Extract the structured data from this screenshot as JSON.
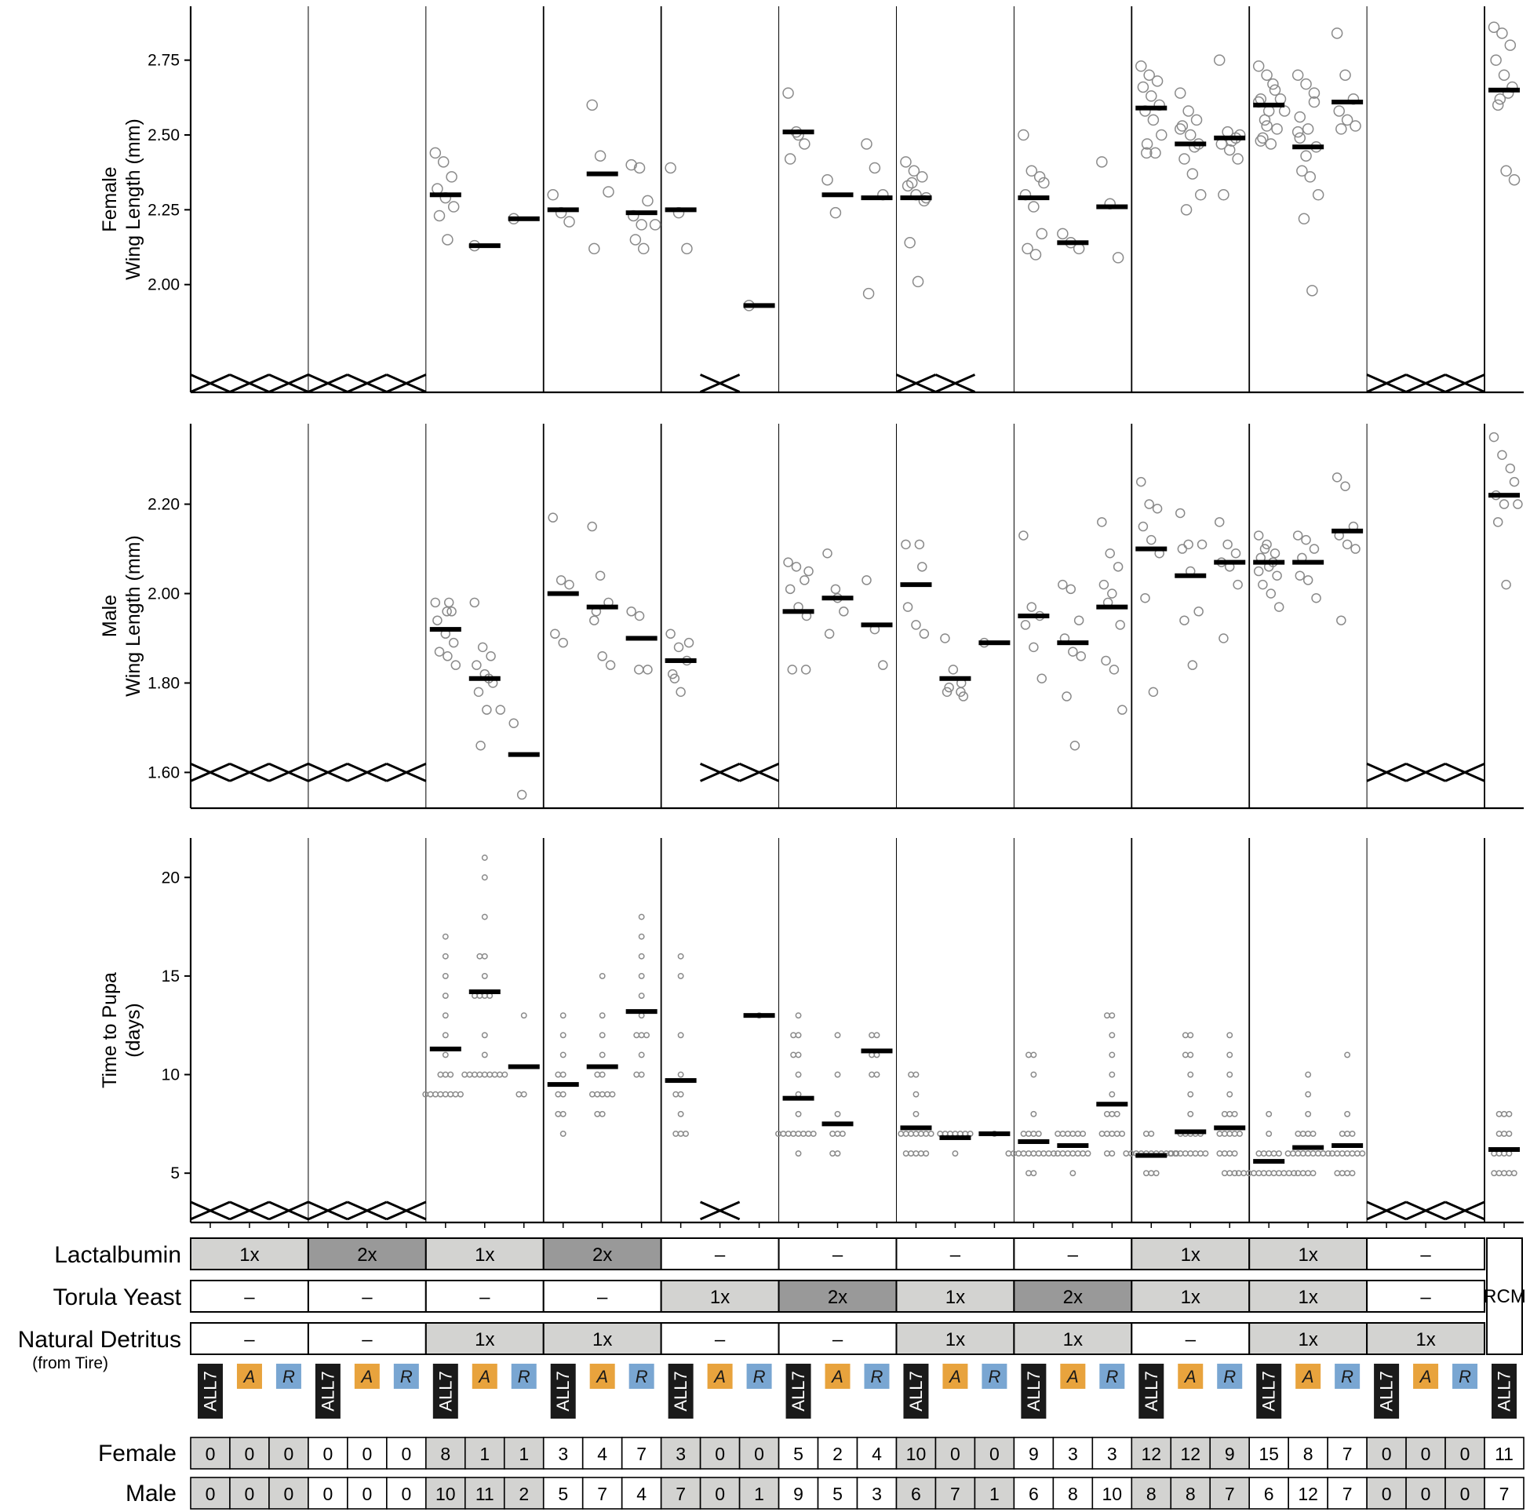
{
  "chart_data": {
    "type": "scatter",
    "description_kind": "multi-panel dot plot with group means",
    "inocula": [
      "ALL7",
      "A",
      "R"
    ],
    "colors": {
      "dark_fill": "#999999",
      "light_fill": "#d3d3d1",
      "all7_fill": "#1a1a1a",
      "a_fill": "#e8a33d",
      "r_fill": "#79a6d2",
      "point_stroke": "#8a8a8a",
      "mean_bar": "#000000"
    },
    "treatments": [
      {
        "lactalbumin": "1x",
        "torula": "–",
        "detritus": "–",
        "lact_shade": "light",
        "torula_shade": "none",
        "detritus_shade": "none"
      },
      {
        "lactalbumin": "2x",
        "torula": "–",
        "detritus": "–",
        "lact_shade": "dark",
        "torula_shade": "none",
        "detritus_shade": "none"
      },
      {
        "lactalbumin": "1x",
        "torula": "–",
        "detritus": "1x",
        "lact_shade": "light",
        "torula_shade": "none",
        "detritus_shade": "light"
      },
      {
        "lactalbumin": "2x",
        "torula": "–",
        "detritus": "1x",
        "lact_shade": "dark",
        "torula_shade": "none",
        "detritus_shade": "light"
      },
      {
        "lactalbumin": "–",
        "torula": "1x",
        "detritus": "–",
        "lact_shade": "none",
        "torula_shade": "light",
        "detritus_shade": "none"
      },
      {
        "lactalbumin": "–",
        "torula": "2x",
        "detritus": "–",
        "lact_shade": "none",
        "torula_shade": "dark",
        "detritus_shade": "none"
      },
      {
        "lactalbumin": "–",
        "torula": "1x",
        "detritus": "1x",
        "lact_shade": "none",
        "torula_shade": "light",
        "detritus_shade": "light"
      },
      {
        "lactalbumin": "–",
        "torula": "2x",
        "detritus": "1x",
        "lact_shade": "none",
        "torula_shade": "dark",
        "detritus_shade": "light"
      },
      {
        "lactalbumin": "1x",
        "torula": "1x",
        "detritus": "–",
        "lact_shade": "light",
        "torula_shade": "light",
        "detritus_shade": "none"
      },
      {
        "lactalbumin": "1x",
        "torula": "1x",
        "detritus": "1x",
        "lact_shade": "light",
        "torula_shade": "light",
        "detritus_shade": "light"
      },
      {
        "lactalbumin": "–",
        "torula": "–",
        "detritus": "1x",
        "lact_shade": "none",
        "torula_shade": "none",
        "detritus_shade": "light"
      }
    ],
    "rcm_label": "RCM",
    "row_labels": {
      "lactalbumin": "Lactalbumin",
      "torula": "Torula Yeast",
      "detritus": "Natural Detritus",
      "detritus_sub": "(from Tire)",
      "female": "Female",
      "male": "Male"
    },
    "counts": {
      "female": [
        0,
        0,
        0,
        0,
        0,
        0,
        8,
        1,
        1,
        3,
        4,
        7,
        3,
        0,
        0,
        5,
        2,
        4,
        10,
        0,
        0,
        9,
        3,
        3,
        12,
        12,
        9,
        15,
        8,
        7,
        0,
        0,
        0,
        11
      ],
      "male": [
        0,
        0,
        0,
        0,
        0,
        0,
        10,
        11,
        2,
        5,
        7,
        4,
        7,
        0,
        1,
        9,
        5,
        3,
        6,
        7,
        1,
        6,
        8,
        10,
        8,
        8,
        7,
        6,
        12,
        7,
        0,
        0,
        0,
        7
      ]
    },
    "panels": [
      {
        "id": "female",
        "ylabel_lines": [
          "Female",
          "Wing Length (mm)"
        ],
        "ylim": [
          1.64,
          2.93
        ],
        "yticks": [
          2.0,
          2.25,
          2.5,
          2.75
        ],
        "tick_labels": [
          "2.00",
          "2.25",
          "2.50",
          "2.75"
        ],
        "cross_level": 1.67,
        "crosses": [
          0,
          1,
          2,
          3,
          4,
          5,
          13,
          18,
          19,
          30,
          31,
          32
        ],
        "point_style": "large",
        "means": [
          null,
          null,
          null,
          null,
          null,
          null,
          2.3,
          2.13,
          2.22,
          2.25,
          2.37,
          2.24,
          2.25,
          null,
          1.93,
          2.51,
          2.3,
          2.29,
          2.29,
          null,
          null,
          2.29,
          2.14,
          2.26,
          2.59,
          2.47,
          2.49,
          2.6,
          2.46,
          2.61,
          null,
          null,
          null,
          2.65
        ],
        "points": [
          [],
          [],
          [],
          [],
          [],
          [],
          [
            2.44,
            2.41,
            2.36,
            2.32,
            2.29,
            2.26,
            2.23,
            2.15
          ],
          [
            2.13
          ],
          [
            2.22
          ],
          [
            2.3,
            2.24,
            2.21
          ],
          [
            2.6,
            2.43,
            2.31,
            2.12
          ],
          [
            2.4,
            2.39,
            2.28,
            2.23,
            2.2,
            2.2,
            2.15,
            2.12
          ],
          [
            2.39,
            2.24,
            2.12
          ],
          [],
          [
            1.93
          ],
          [
            2.64,
            2.51,
            2.47,
            2.42,
            2.5
          ],
          [
            2.35,
            2.24
          ],
          [
            2.47,
            2.39,
            2.3,
            1.97
          ],
          [
            2.41,
            2.38,
            2.36,
            2.33,
            2.3,
            2.28,
            2.14,
            2.01,
            2.29,
            2.34
          ],
          [],
          [],
          [
            2.5,
            2.38,
            2.36,
            2.3,
            2.26,
            2.17,
            2.12,
            2.1,
            2.34
          ],
          [
            2.17,
            2.14,
            2.12
          ],
          [
            2.41,
            2.27,
            2.09
          ],
          [
            2.73,
            2.7,
            2.68,
            2.66,
            2.63,
            2.6,
            2.58,
            2.55,
            2.5,
            2.47,
            2.44,
            2.44
          ],
          [
            2.64,
            2.58,
            2.55,
            2.53,
            2.5,
            2.47,
            2.42,
            2.37,
            2.3,
            2.25,
            2.46,
            2.52
          ],
          [
            2.75,
            2.51,
            2.49,
            2.47,
            2.45,
            2.42,
            2.3,
            2.48,
            2.5
          ],
          [
            2.73,
            2.7,
            2.65,
            2.62,
            2.58,
            2.52,
            2.49,
            2.47,
            2.58,
            2.55,
            2.67,
            2.61,
            2.53,
            2.62,
            2.48
          ],
          [
            2.7,
            2.67,
            2.61,
            2.56,
            2.52,
            2.46,
            2.38,
            2.36,
            2.3,
            2.22,
            1.98,
            2.51,
            2.43,
            2.64,
            2.49
          ],
          [
            2.84,
            2.7,
            2.62,
            2.58,
            2.55,
            2.53,
            2.52
          ],
          [],
          [],
          [],
          [
            2.86,
            2.84,
            2.8,
            2.75,
            2.7,
            2.66,
            2.6,
            2.38,
            2.35,
            2.62,
            2.64
          ]
        ]
      },
      {
        "id": "male",
        "ylabel_lines": [
          "Male",
          "Wing Length (mm)"
        ],
        "ylim": [
          1.52,
          2.38
        ],
        "yticks": [
          1.6,
          1.8,
          2.0,
          2.2
        ],
        "tick_labels": [
          "1.60",
          "1.80",
          "2.00",
          "2.20"
        ],
        "cross_level": 1.6,
        "crosses": [
          0,
          1,
          2,
          3,
          4,
          5,
          13,
          14,
          30,
          31,
          32
        ],
        "point_style": "medium",
        "means": [
          null,
          null,
          null,
          null,
          null,
          null,
          1.92,
          1.81,
          1.64,
          2.0,
          1.97,
          1.9,
          1.85,
          null,
          null,
          1.96,
          1.99,
          1.93,
          2.02,
          1.81,
          1.89,
          1.95,
          1.89,
          1.97,
          2.1,
          2.04,
          2.07,
          2.07,
          2.07,
          2.14,
          null,
          null,
          null,
          2.22
        ],
        "points": [
          [],
          [],
          [],
          [],
          [],
          [],
          [
            1.98,
            1.98,
            1.96,
            1.94,
            1.91,
            1.89,
            1.87,
            1.86,
            1.84,
            1.96
          ],
          [
            1.98,
            1.88,
            1.86,
            1.84,
            1.82,
            1.8,
            1.78,
            1.74,
            1.74,
            1.66,
            1.81
          ],
          [
            1.71,
            1.55
          ],
          [
            2.17,
            2.03,
            2.02,
            1.91,
            1.89
          ],
          [
            2.15,
            2.04,
            1.98,
            1.94,
            1.86,
            1.84,
            1.96
          ],
          [
            1.96,
            1.95,
            1.83,
            1.83
          ],
          [
            1.91,
            1.88,
            1.85,
            1.82,
            1.78,
            1.89,
            1.81
          ],
          [],
          [],
          [
            2.07,
            2.06,
            2.03,
            2.01,
            1.97,
            1.95,
            1.83,
            1.83,
            2.05
          ],
          [
            2.09,
            2.01,
            1.96,
            1.91,
            1.99
          ],
          [
            2.03,
            1.92,
            1.84
          ],
          [
            2.11,
            2.11,
            2.06,
            1.97,
            1.93,
            1.91
          ],
          [
            1.9,
            1.83,
            1.8,
            1.78,
            1.78,
            1.77,
            1.79
          ],
          [
            1.89
          ],
          [
            2.13,
            1.97,
            1.95,
            1.93,
            1.88,
            1.81
          ],
          [
            2.02,
            2.01,
            1.94,
            1.9,
            1.87,
            1.86,
            1.77,
            1.66
          ],
          [
            2.16,
            2.09,
            2.06,
            2.02,
            2.0,
            1.93,
            1.85,
            1.83,
            1.74,
            1.98
          ],
          [
            2.25,
            2.2,
            2.19,
            2.15,
            2.12,
            2.09,
            1.99,
            1.78
          ],
          [
            2.18,
            2.11,
            2.11,
            2.1,
            2.05,
            1.96,
            1.94,
            1.84
          ],
          [
            2.16,
            2.11,
            2.09,
            2.07,
            2.06,
            2.02,
            1.9
          ],
          [
            2.13,
            2.11,
            2.09,
            2.08,
            2.06,
            2.04,
            2.02,
            2.0,
            1.97,
            2.1,
            2.07,
            2.05
          ],
          [
            2.13,
            2.12,
            2.1,
            2.04,
            2.03,
            1.99,
            2.08
          ],
          [
            2.26,
            2.24,
            2.15,
            2.13,
            2.11,
            2.1,
            1.94
          ],
          [],
          [],
          [],
          [
            2.35,
            2.31,
            2.28,
            2.22,
            2.2,
            2.2,
            2.16,
            2.02,
            2.25
          ]
        ]
      },
      {
        "id": "pupa",
        "ylabel_lines": [
          "Time to Pupa",
          "(days)"
        ],
        "ylim": [
          2.5,
          22.0
        ],
        "yticks": [
          5,
          10,
          15,
          20
        ],
        "tick_labels": [
          "5",
          "10",
          "15",
          "20"
        ],
        "cross_level": 3.1,
        "crosses": [
          0,
          1,
          2,
          3,
          4,
          5,
          13,
          30,
          31,
          32
        ],
        "point_style": "small",
        "means": [
          null,
          null,
          null,
          null,
          null,
          null,
          11.3,
          14.2,
          10.4,
          9.5,
          10.4,
          13.2,
          9.7,
          null,
          13.0,
          8.8,
          7.5,
          11.2,
          7.3,
          6.8,
          7.0,
          6.6,
          6.4,
          8.5,
          5.9,
          7.1,
          7.3,
          5.6,
          6.3,
          6.4,
          null,
          null,
          null,
          6.2
        ],
        "points": [
          [],
          [],
          [],
          [],
          [],
          [],
          [
            17,
            16,
            15,
            14,
            13,
            12,
            11,
            10,
            10,
            10,
            9,
            9,
            9,
            9,
            9,
            9,
            9,
            9
          ],
          [
            21,
            20,
            18,
            16,
            16,
            15,
            14,
            14,
            14,
            14,
            12,
            11,
            10,
            10,
            10,
            10,
            10,
            10,
            10,
            10,
            10
          ],
          [
            13,
            9,
            9
          ],
          [
            13,
            12,
            11,
            10,
            10,
            9,
            9,
            8,
            7,
            8
          ],
          [
            15,
            13,
            12,
            11,
            10,
            10,
            9,
            9,
            9,
            9,
            9,
            8,
            8
          ],
          [
            18,
            17,
            16,
            15,
            14,
            13,
            12,
            12,
            12,
            11,
            10,
            10
          ],
          [
            16,
            15,
            12,
            10,
            9,
            9,
            8,
            7,
            7,
            7
          ],
          [],
          [
            13
          ],
          [
            13,
            12,
            12,
            11,
            11,
            10,
            9,
            8,
            7,
            7,
            7,
            7,
            7,
            7,
            7,
            7,
            6
          ],
          [
            12,
            10,
            8,
            7,
            7,
            7,
            6,
            6
          ],
          [
            12,
            12,
            11,
            11,
            10,
            10
          ],
          [
            10,
            10,
            9,
            8,
            7,
            7,
            7,
            7,
            7,
            7,
            7,
            6,
            6,
            6,
            6,
            6
          ],
          [
            7,
            7,
            7,
            7,
            7,
            7,
            7,
            6
          ],
          [
            7
          ],
          [
            11,
            11,
            10,
            8,
            7,
            7,
            7,
            7,
            6,
            6,
            6,
            6,
            6,
            6,
            6,
            6,
            6,
            6,
            5,
            5
          ],
          [
            7,
            7,
            7,
            7,
            7,
            7,
            6,
            6,
            6,
            6,
            6,
            6,
            6,
            5
          ],
          [
            13,
            13,
            12,
            11,
            10,
            9,
            8,
            8,
            8,
            7,
            7,
            7,
            7,
            7,
            6,
            6
          ],
          [
            7,
            7,
            6,
            6,
            6,
            6,
            6,
            6,
            6,
            6,
            6,
            6,
            6,
            5,
            5,
            5
          ],
          [
            12,
            12,
            11,
            11,
            10,
            9,
            8,
            7,
            7,
            7,
            7,
            7,
            6,
            6,
            6,
            6,
            6,
            6,
            6,
            6
          ],
          [
            12,
            11,
            10,
            9,
            8,
            8,
            8,
            7,
            7,
            7,
            7,
            7,
            6,
            6,
            6,
            6,
            5,
            5,
            5
          ],
          [
            8,
            7,
            6,
            6,
            6,
            6,
            6,
            5,
            5,
            5,
            5,
            5,
            5,
            5,
            5,
            5,
            5,
            5,
            5
          ],
          [
            10,
            9,
            8,
            7,
            7,
            7,
            7,
            6,
            6,
            6,
            6,
            6,
            6,
            6,
            6,
            6,
            5,
            5,
            5,
            5
          ],
          [
            11,
            8,
            7,
            7,
            7,
            6,
            6,
            6,
            6,
            6,
            6,
            6,
            5,
            5,
            5,
            5
          ],
          [],
          [],
          [],
          [
            8,
            8,
            8,
            7,
            7,
            7,
            6,
            6,
            6,
            6,
            5,
            5,
            5,
            5,
            5
          ]
        ]
      }
    ]
  }
}
